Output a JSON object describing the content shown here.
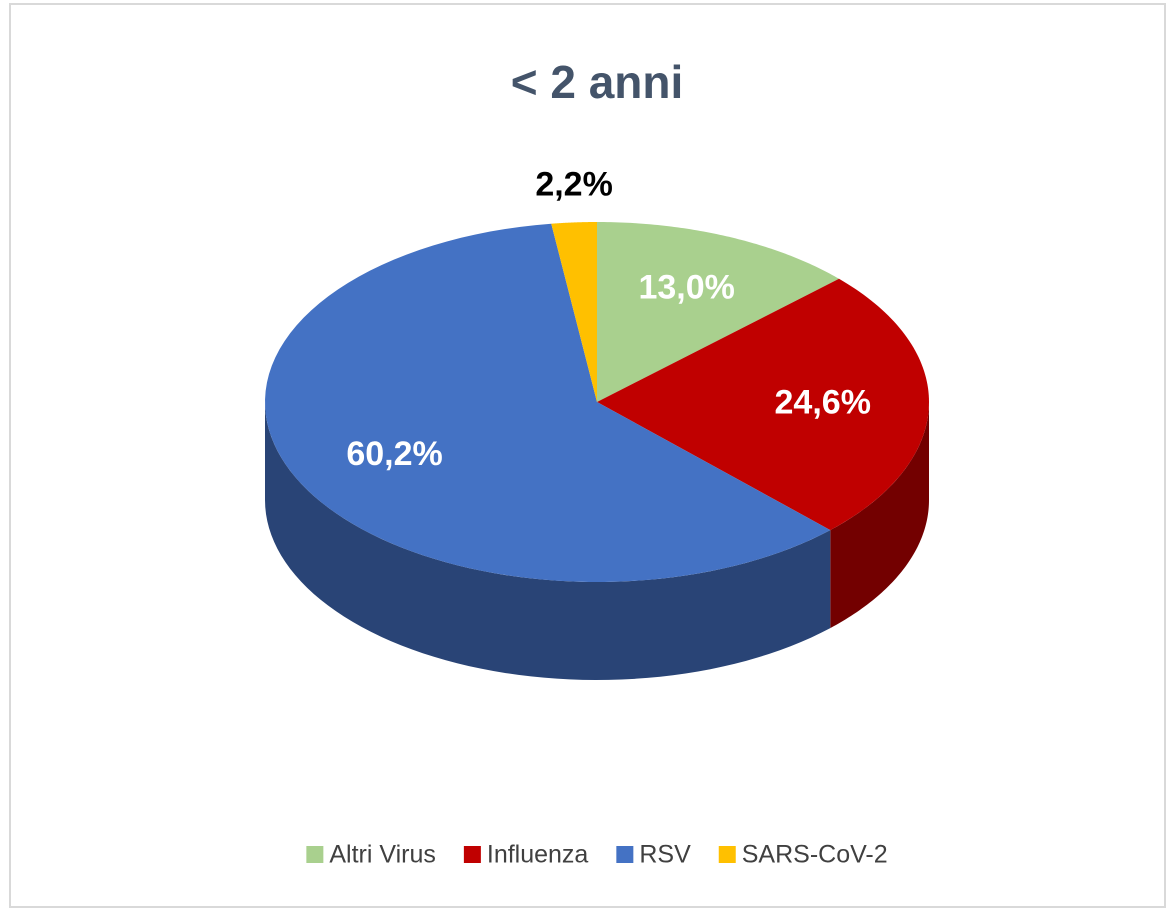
{
  "chart_data": {
    "type": "pie3d",
    "title": "< 2 anni",
    "categories": [
      "Altri Virus",
      "Influenza",
      "RSV",
      "SARS-CoV-2"
    ],
    "values": [
      13.0,
      24.6,
      60.2,
      2.2
    ],
    "value_labels": [
      "13,0%",
      "24,6%",
      "60,2%",
      "2,2%"
    ],
    "colors": [
      "#a9d08e",
      "#c00000",
      "#4472c4",
      "#ffc000"
    ],
    "legend": "bottom"
  }
}
